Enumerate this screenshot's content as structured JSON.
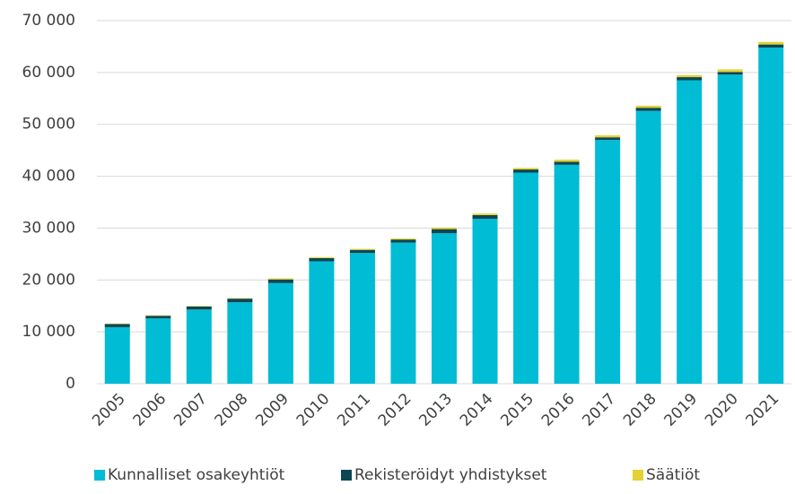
{
  "chart_data": {
    "type": "stacked_bar",
    "categories": [
      "2005",
      "2006",
      "2007",
      "2008",
      "2009",
      "2010",
      "2011",
      "2012",
      "2013",
      "2014",
      "2015",
      "2016",
      "2017",
      "2018",
      "2019",
      "2020",
      "2021"
    ],
    "series": [
      {
        "name": "Kunnalliset osakeyhtiöt",
        "color": "#00bcd4",
        "values": [
          10900,
          12600,
          14300,
          15700,
          19400,
          23600,
          25200,
          27200,
          29000,
          31800,
          40700,
          42200,
          47000,
          52600,
          58500,
          59600,
          64800
        ]
      },
      {
        "name": "Rekisteröidyt yhdistykset",
        "color": "#0d4655",
        "values": [
          600,
          500,
          600,
          700,
          700,
          600,
          600,
          600,
          800,
          700,
          600,
          600,
          500,
          600,
          600,
          500,
          600
        ]
      },
      {
        "name": "Säätiöt",
        "color": "#e3d232",
        "values": [
          100,
          100,
          100,
          100,
          200,
          200,
          200,
          200,
          300,
          300,
          300,
          400,
          400,
          400,
          400,
          500,
          500
        ]
      }
    ],
    "ylim": [
      0,
      70000
    ],
    "yticks": [
      0,
      {
        "value": 10000,
        "label": "10 000"
      },
      {
        "value": 20000,
        "label": "20 000"
      },
      {
        "value": 30000,
        "label": "30 000"
      },
      {
        "value": 40000,
        "label": "40 000"
      },
      {
        "value": 50000,
        "label": "50 000"
      },
      {
        "value": 60000,
        "label": "60 000"
      },
      {
        "value": 70000,
        "label": "70 000"
      }
    ],
    "grid": true,
    "legend": "bottom"
  }
}
